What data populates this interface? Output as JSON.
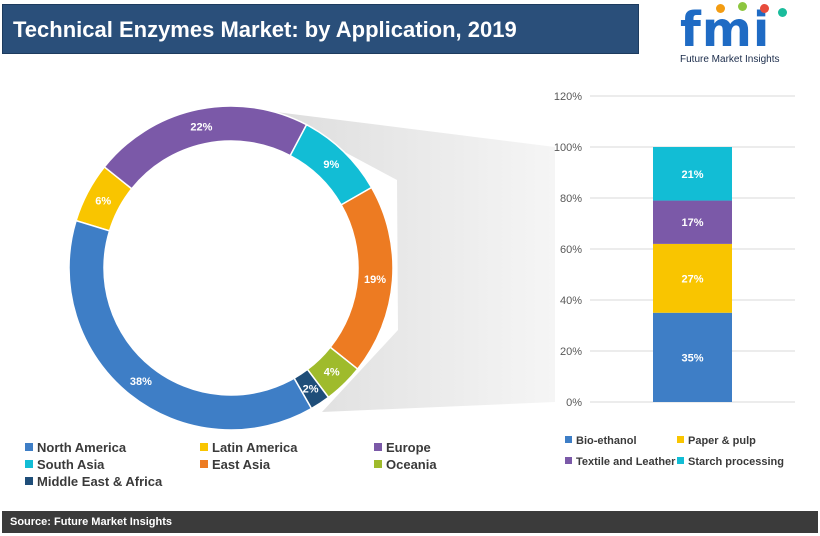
{
  "header": {
    "title": "Technical Enzymes Market: by Application, 2019"
  },
  "logo": {
    "letters": "fmi",
    "caption": "Future Market Insights"
  },
  "source": {
    "text": "Source: Future Market Insights"
  },
  "colors": {
    "north_america": "#3e7ec6",
    "latin_america": "#f9c500",
    "europe": "#7b59a8",
    "south_asia": "#12bdd5",
    "east_asia": "#ed7b22",
    "oceania": "#9fbb2c",
    "middle_east_africa": "#1f4e79",
    "logo_dot_1": "#f39c12",
    "logo_dot_2": "#8dc63f",
    "logo_dot_3": "#e74c3c",
    "logo_dot_4": "#1abc9c"
  },
  "chart_data": [
    {
      "type": "pie",
      "variant": "donut",
      "slices": [
        {
          "label": "Latin America",
          "value": 6,
          "display": "6%",
          "color": "#f9c500"
        },
        {
          "label": "Europe",
          "value": 22,
          "display": "22%",
          "color": "#7b59a8"
        },
        {
          "label": "South Asia",
          "value": 9,
          "display": "9%",
          "color": "#12bdd5"
        },
        {
          "label": "East Asia",
          "value": 19,
          "display": "19%",
          "color": "#ed7b22"
        },
        {
          "label": "Oceania",
          "value": 4,
          "display": "4%",
          "color": "#9fbb2c"
        },
        {
          "label": "Middle East & Africa",
          "value": 2,
          "display": "2%",
          "color": "#1f4e79"
        },
        {
          "label": "North America",
          "value": 38,
          "display": "38%",
          "color": "#3e7ec6"
        }
      ],
      "legend": [
        {
          "label": "North America",
          "color": "#3e7ec6"
        },
        {
          "label": "Latin America",
          "color": "#f9c500"
        },
        {
          "label": "Europe",
          "color": "#7b59a8"
        },
        {
          "label": "South Asia",
          "color": "#12bdd5"
        },
        {
          "label": "East Asia",
          "color": "#ed7b22"
        },
        {
          "label": "Oceania",
          "color": "#9fbb2c"
        },
        {
          "label": "Middle East & Africa",
          "color": "#1f4e79"
        }
      ],
      "legend_position": "bottom"
    },
    {
      "type": "bar",
      "variant": "stacked-100",
      "breakdown_of": "North America",
      "ylim": [
        0,
        120
      ],
      "yticks": [
        "0%",
        "20%",
        "40%",
        "60%",
        "80%",
        "100%",
        "120%"
      ],
      "series": [
        {
          "name": "Bio-ethanol",
          "value": 35,
          "display": "35%",
          "color": "#3e7ec6"
        },
        {
          "name": "Paper & pulp",
          "value": 27,
          "display": "27%",
          "color": "#f9c500"
        },
        {
          "name": "Textile and Leather",
          "value": 17,
          "display": "17%",
          "color": "#7b59a8"
        },
        {
          "name": "Starch processing",
          "value": 21,
          "display": "21%",
          "color": "#12bdd5"
        }
      ],
      "grid": true,
      "legend_position": "bottom"
    }
  ]
}
